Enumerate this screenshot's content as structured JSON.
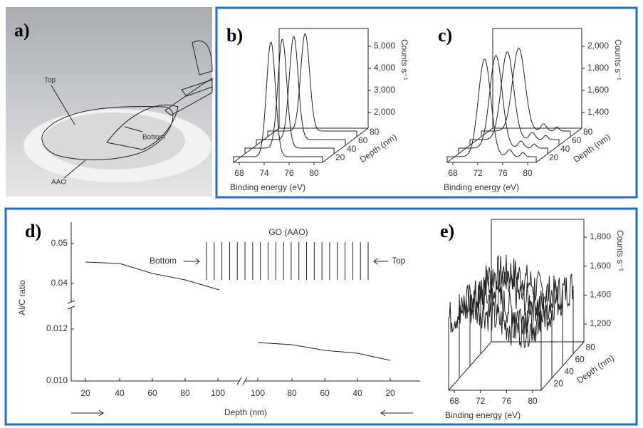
{
  "panel_a": {
    "label": "a)",
    "annotations": [
      "Top",
      "Bottom",
      "AAO"
    ]
  },
  "panel_b": {
    "label": "b)",
    "x_ticks": [
      "68",
      "74",
      "76",
      "80"
    ],
    "x_label": "Binding energy (eV)",
    "depth_ticks": [
      "20",
      "40",
      "60",
      "80"
    ],
    "depth_label": "Depth (nm)",
    "z_ticks": [
      "2,000",
      "3,000",
      "4,000",
      "5,000"
    ],
    "z_label": "Counts s⁻¹"
  },
  "panel_c": {
    "label": "c)",
    "x_ticks": [
      "68",
      "72",
      "76",
      "80"
    ],
    "x_label": "Binding energy (eV)",
    "depth_ticks": [
      "20",
      "40",
      "60",
      "80"
    ],
    "depth_label": "Depth (nm)",
    "z_ticks": [
      "1,400",
      "1,600",
      "1,800",
      "2,000"
    ],
    "z_label": "Counts s⁻¹"
  },
  "panel_d": {
    "label": "d)",
    "y_label": "Al/C ratio",
    "y_ticks": [
      "0.010",
      "0.012",
      "0.04",
      "0.05"
    ],
    "x_ticks_left": [
      "20",
      "40",
      "60",
      "80",
      "100"
    ],
    "x_ticks_right": [
      "100",
      "80",
      "60",
      "40",
      "20"
    ],
    "x_label": "Depth (nm)",
    "inset_title": "GO (AAO)",
    "inset_left": "Bottom",
    "inset_right": "Top"
  },
  "panel_e": {
    "label": "e)",
    "x_ticks": [
      "68",
      "72",
      "76",
      "80"
    ],
    "x_label": "Binding energy (eV)",
    "depth_ticks": [
      "20",
      "40",
      "60",
      "80"
    ],
    "depth_label": "Depth (nm)",
    "z_ticks": [
      "1,200",
      "1,400",
      "1,600",
      "1,800"
    ],
    "z_label": "Counts s⁻¹"
  }
}
